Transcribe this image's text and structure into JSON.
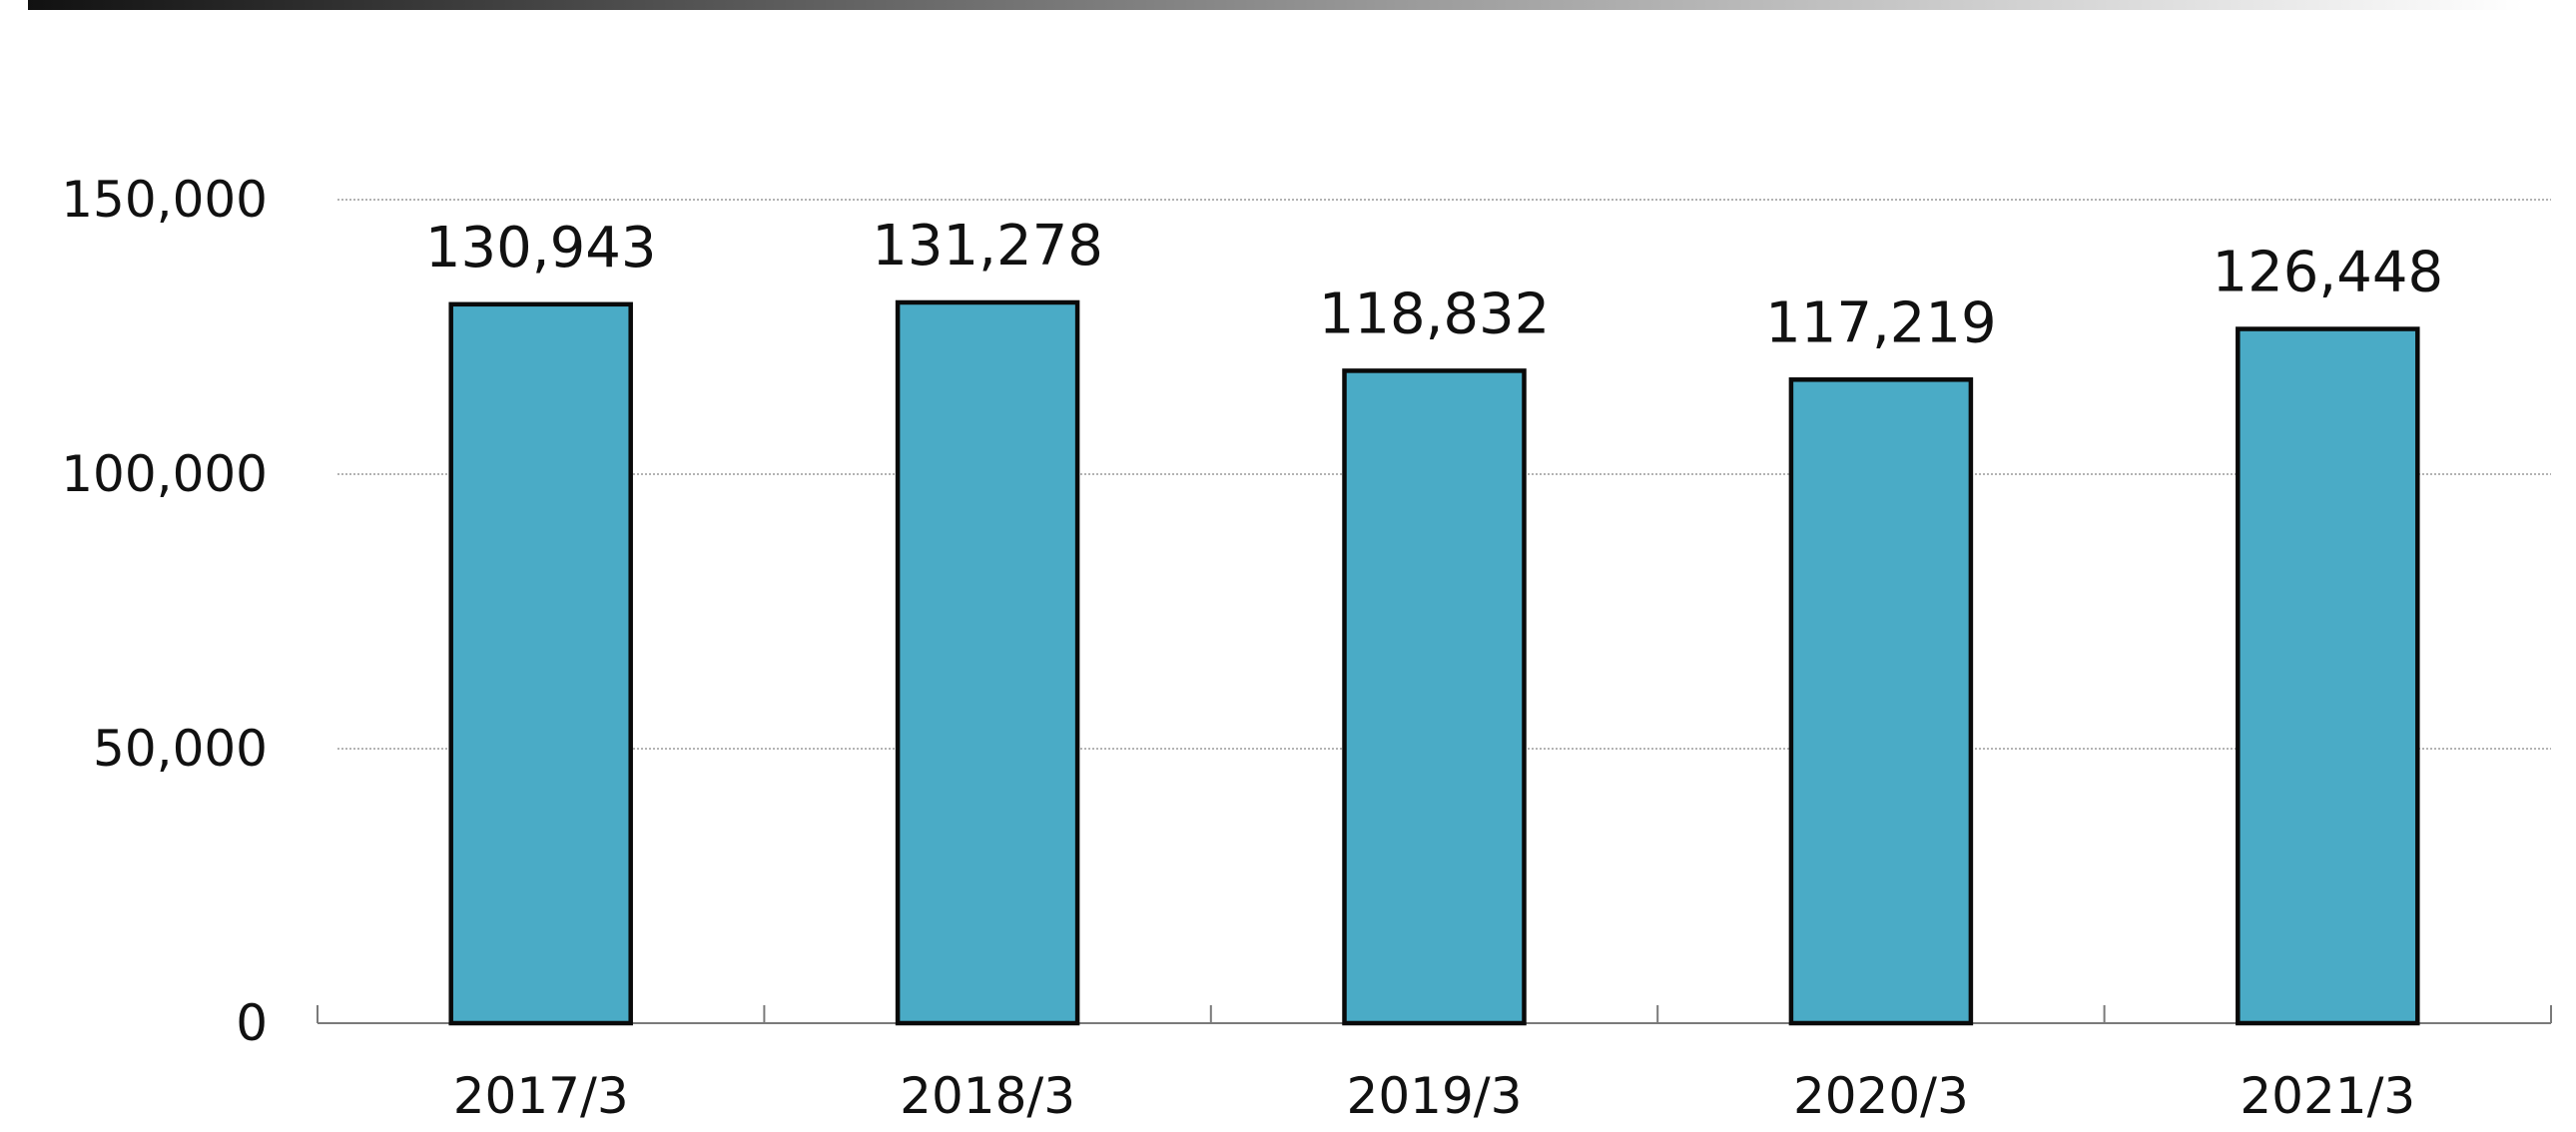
{
  "chart_data": {
    "type": "bar",
    "categories": [
      "2017/3",
      "2018/3",
      "2019/3",
      "2020/3",
      "2021/3"
    ],
    "values": [
      130943,
      131278,
      118832,
      117219,
      126448
    ],
    "data_labels": [
      "130,943",
      "131,278",
      "118,832",
      "117,219",
      "126,448"
    ],
    "ylim": [
      0,
      150000
    ],
    "yticks": [
      0,
      50000,
      100000,
      150000
    ],
    "ytick_labels": [
      "0",
      "50,000",
      "100,000",
      "150,000"
    ],
    "grid": true,
    "legend": "none",
    "title": "",
    "xlabel": "",
    "ylabel": ""
  },
  "colors": {
    "bar_fill": "#4aabc6",
    "bar_stroke": "#0a0a0a",
    "header_band_start": "#111111",
    "header_band_end": "#ffffff"
  }
}
